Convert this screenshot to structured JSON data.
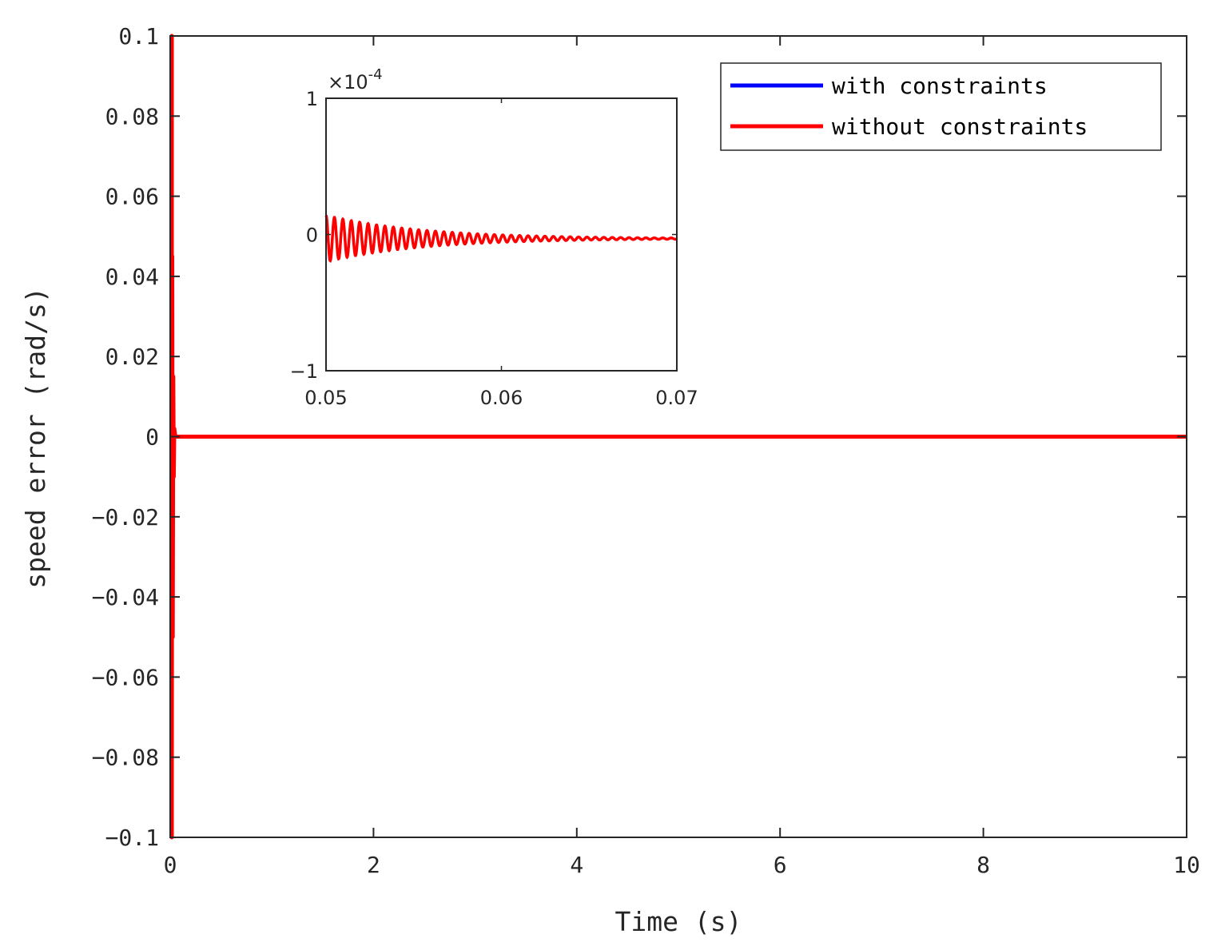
{
  "chart_data": [
    {
      "type": "line",
      "xlabel": "Time (s)",
      "ylabel": "speed error (rad/s)",
      "xlim": [
        0,
        10
      ],
      "ylim": [
        -0.1,
        0.1
      ],
      "xticks": [
        0,
        2,
        4,
        6,
        8,
        10
      ],
      "xtick_labels": [
        "0",
        "2",
        "4",
        "6",
        "8",
        "10"
      ],
      "yticks": [
        -0.1,
        -0.08,
        -0.06,
        -0.04,
        -0.02,
        0,
        0.02,
        0.04,
        0.06,
        0.08,
        0.1
      ],
      "ytick_labels": [
        "-0.1",
        "-0.08",
        "-0.06",
        "-0.04",
        "-0.02",
        "0",
        "0.02",
        "0.04",
        "0.06",
        "0.08",
        "0.1"
      ],
      "grid": false,
      "legend_position": "top-right",
      "series": [
        {
          "name": "with constraints",
          "color": "#0000ff",
          "x": [
            0,
            0.005,
            0.01,
            0.015,
            0.02,
            0.025,
            0.03,
            0.035,
            0.04,
            0.05,
            1,
            10
          ],
          "y": [
            0.1,
            -0.1,
            0.1,
            -0.09,
            0.045,
            -0.05,
            0.015,
            -0.01,
            0.002,
            0,
            0,
            0
          ]
        },
        {
          "name": "without constraints",
          "color": "#ff0000",
          "x": [
            0,
            0.005,
            0.01,
            0.015,
            0.02,
            0.025,
            0.03,
            0.035,
            0.04,
            0.05,
            1,
            10
          ],
          "y": [
            0.1,
            -0.1,
            0.1,
            -0.09,
            0.045,
            -0.05,
            0.015,
            -0.01,
            0.002,
            0,
            0,
            0
          ]
        }
      ]
    },
    {
      "type": "line",
      "inset": true,
      "xlim": [
        0.05,
        0.07
      ],
      "ylim": [
        -1,
        1
      ],
      "y_multiplier": "×10",
      "y_multiplier_exp": "-4",
      "xticks": [
        0.05,
        0.06,
        0.07
      ],
      "xtick_labels": [
        "0.05",
        "0.06",
        "0.07"
      ],
      "yticks": [
        -1,
        0,
        1
      ],
      "ytick_labels": [
        "-1",
        "0",
        "1"
      ],
      "series": [
        {
          "name": "with constraints",
          "color": "#0000ff",
          "oscillation": {
            "start": 0.05,
            "initial_amplitude": 0.17,
            "decay_time": 0.0055,
            "period": 0.00048,
            "offset": -0.03,
            "end": 0.07
          }
        },
        {
          "name": "without constraints",
          "color": "#ff0000",
          "oscillation": {
            "start": 0.05,
            "initial_amplitude": 0.17,
            "decay_time": 0.0055,
            "period": 0.00048,
            "offset": -0.03,
            "end": 0.07
          }
        }
      ]
    }
  ]
}
